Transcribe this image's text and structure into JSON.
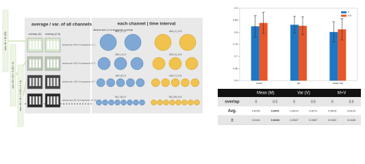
{
  "diagram": {
    "side_labels": [
      "size: 40 × 40 (25)",
      "size: 40 × 40 × 4 (25 × 4)",
      "size: 40 × 40 × 4 (25 × 4 × 2)"
    ],
    "left_panel": {
      "title": "average / var. of all channels",
      "columns": [
        "overlap (0)",
        "overlap (0.5)"
      ],
      "rows": [
        "window size: 400 / # of segments: 2 / 1",
        "window size: 200 / # of segments: 4 / 3",
        "window size: 100 / # of segments: 8 / 7",
        "window size: 50 / # of segments: 16 / 15"
      ]
    },
    "middle_panel": {
      "title": "each channel | time interval",
      "subtitle": "window size | # of segments | overlap",
      "groups": [
        "400 | 2 | 0",
        "400 | 1 | 0.5",
        "200 | 4 | 0",
        "200 | 3 | 0.5",
        "100 | 8 | 0",
        "100 | 7 | 0.5",
        "50 | 16 | 0",
        "50 | 15 | 0.5"
      ]
    }
  },
  "chart_data": {
    "type": "bar",
    "categories": [
      "mean",
      "var",
      "mean+var"
    ],
    "series": [
      {
        "name": "0",
        "color": "#1f77c4",
        "values": [
          0.8251,
          0.8314,
          0.8015
        ],
        "errors": [
          0.0441,
          0.0347,
          0.0422
        ]
      },
      {
        "name": "0.5",
        "color": "#e8572a",
        "values": [
          0.8391,
          0.8271,
          0.8123
        ],
        "errors": [
          0.0438,
          0.0367,
          0.0445
        ]
      }
    ],
    "ylim": [
      0.6,
      0.9
    ],
    "yticks": [
      0.6,
      0.65,
      0.7,
      0.75,
      0.8,
      0.85,
      0.9
    ],
    "legend": "upper right"
  },
  "table": {
    "header": [
      "Mean (M)",
      "Var (V)",
      "M+V"
    ],
    "rows": [
      [
        "overlap",
        "0",
        "0.5",
        "0",
        "0.5",
        "0",
        "0.5"
      ],
      [
        "Avg.",
        "0.8251",
        "0.8391",
        "0.8314",
        "0.8271",
        "0.8015",
        "0.8123"
      ],
      [
        "±",
        "0.0441",
        "0.0438",
        "0.0347",
        "0.0367",
        "0.0422",
        "0.0445"
      ]
    ],
    "bold": [
      [
        1,
        2
      ],
      [
        2,
        2
      ]
    ]
  }
}
